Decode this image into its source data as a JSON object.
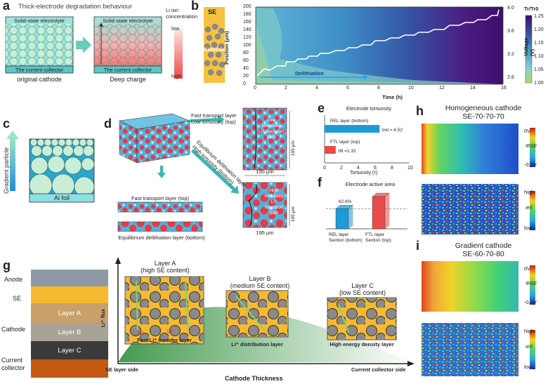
{
  "panels": {
    "a": {
      "label": "a",
      "title": "Thick-electrode degradation behaviour",
      "electrolyte": "Solid-state electrolyte",
      "collector": "The current collector",
      "caption_left": "original cathode",
      "caption_right": "Deep charge",
      "legend_title": "Li ion concentration",
      "legend_low": "low",
      "legend_high": "high"
    },
    "b": {
      "label": "b",
      "se_label": "SE",
      "cathode_label": "Cathode",
      "ylabel": "Position (μm)",
      "xlabel": "Time (h)",
      "annotation": "Delithiation",
      "right_axis": "Voltage (V)",
      "colorbar_title": "Tr/Tr0",
      "y_ticks": [
        "0",
        "20",
        "40",
        "60",
        "80",
        "100",
        "120",
        "140",
        "160",
        "180",
        "200"
      ],
      "x_ticks": [
        "0",
        "2",
        "4",
        "6",
        "8",
        "10",
        "12",
        "14",
        "16"
      ],
      "v_ticks": [
        "4.0",
        "3.6",
        "3.2",
        "2.8"
      ],
      "cb_ticks": [
        "1.25",
        "1.20",
        "1.15",
        "1.10",
        "1.05",
        "1.00"
      ]
    },
    "c": {
      "label": "c",
      "side_label": "Gradient particle",
      "foil": "Al foil"
    },
    "d": {
      "label": "d",
      "ftl_top": "Fast transport layer\nLow tortuosity (top)",
      "ftl_top_1": "Fast transport layer",
      "ftl_top_2": "Low tortuosity (top)",
      "diag_1": "Equilibrium delithiation layer",
      "diag_2": "High tortuosity (bottom)",
      "slice_top": "Fast transport layer (top)",
      "slice_bottom": "Equilibrium delithiation layer (bottom)",
      "inset_low": "Low tortuosity Li⁺ transport path",
      "inset_low_1": "Low",
      "inset_low_2": "tortuosity",
      "inset_low_3": "Li⁺ transport",
      "inset_low_4": "path",
      "inset_high_1": "High",
      "inset_high_2": "tortuosity",
      "inset_high_3": "Li⁺",
      "inset_high_4": "transport",
      "inset_high_5": "path",
      "dim_h": "195 μm",
      "dim_v": "195 μm"
    },
    "e": {
      "label": "e",
      "title": "Electrode tortuosity",
      "xlabel": "Tortuosity (τ)"
    },
    "f": {
      "label": "f",
      "title": "Electrode active area"
    },
    "g": {
      "label": "g",
      "stack": [
        "Anode",
        "SE",
        "Layer A",
        "Layer B",
        "Layer C",
        "Current collector"
      ],
      "stack_side": {
        "anode": "Anode",
        "se": "SE",
        "cathode": "Cathode",
        "cc1": "Current",
        "cc2": "collector"
      },
      "yaxis": "Li⁺ flux",
      "xaxis": "Cathode Thickness",
      "left_end": "SE layer side",
      "right_end": "Current collector side",
      "layerA_1": "Layer A",
      "layerA_2": "(high SE content)",
      "layerB_1": "Layer B",
      "layerB_2": "(medium SE content)",
      "layerC_1": "Layer C",
      "layerC_2": "(low SE content)",
      "capA": "Fast Li⁺ transfer layer",
      "capB": "Li⁺ distribution layer",
      "capC": "High energy density layer",
      "li": "Li⁺"
    },
    "h": {
      "label": "h",
      "title_1": "Homogeneous cathode",
      "title_2": "SE-70-70-70",
      "cb1_top": "0V",
      "cb1_bot": "-0.2V",
      "cb1_sym": "ΦSE",
      "cb2_top": "high",
      "cb2_bot": "low",
      "cb2_sym": "ie/i"
    },
    "i": {
      "label": "i",
      "title_1": "Gradient cathode",
      "title_2": "SE-60-70-80",
      "cb1_top": "0V",
      "cb1_bot": "-0.2V",
      "cb1_sym": "ΦSE",
      "cb2_top": "high",
      "cb2_bot": "low",
      "cb2_sym": "ie/i"
    }
  },
  "chart_data": [
    {
      "type": "bar",
      "title": "Electrode tortuosity",
      "xlabel": "Tortuosity (τ)",
      "orientation": "horizontal",
      "categories": [
        "REL layer (bottom)",
        "FTL layer (top)"
      ],
      "values": [
        6.52,
        1.32
      ],
      "value_labels": [
        "τrel = 6.52",
        "τftl =1.32"
      ],
      "xlim": [
        0,
        10
      ],
      "x_ticks": [
        "0",
        "2",
        "4",
        "6",
        "8",
        "10"
      ],
      "colors": [
        "#1e9bd7",
        "#e84b4b"
      ]
    },
    {
      "type": "bar",
      "title": "Electrode active area",
      "categories": [
        "REL layer Section (bottom)",
        "FTL layer Section (top)"
      ],
      "category_lines": [
        [
          "REL layer",
          "Section (bottom)"
        ],
        [
          "FTL layer",
          "Section (top)"
        ]
      ],
      "values": [
        62.6,
        100
      ],
      "value_labels": [
        "62.6%"
      ],
      "colors": [
        "#1e9bd7",
        "#e84b4b"
      ]
    }
  ]
}
